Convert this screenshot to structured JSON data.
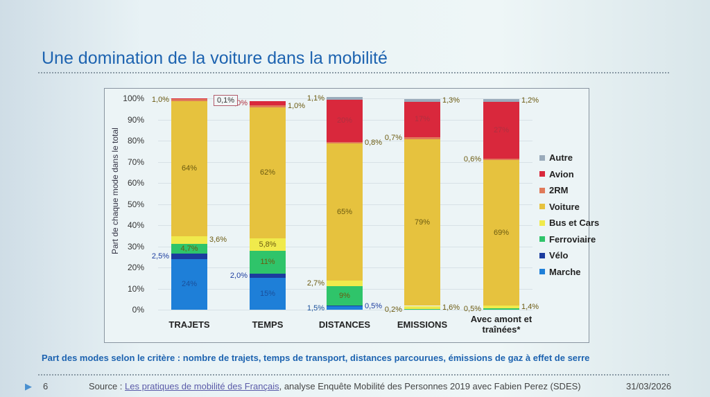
{
  "slide": {
    "title": "Une domination de la voiture dans la mobilité",
    "subtitle": "Part des modes selon le critère : nombre de trajets, temps de transport, distances parcourues, émissions de gaz à effet de serre",
    "page": "6",
    "source_label": "Source : ",
    "source_link": "Les pratiques de mobilité des Français",
    "source_rest": ", analyse Enquête Mobilité des Personnes 2019 avec Fabien Perez (SDES)",
    "date": "31/03/2026"
  },
  "chart_data": {
    "type": "bar",
    "stacked": true,
    "title": "",
    "ylabel": "Part de chaque mode dans le total",
    "ylim": [
      0,
      100
    ],
    "yticks": [
      "0%",
      "10%",
      "20%",
      "30%",
      "40%",
      "50%",
      "60%",
      "70%",
      "80%",
      "90%",
      "100%"
    ],
    "categories": [
      "TRAJETS",
      "TEMPS",
      "DISTANCES",
      "EMISSIONS",
      "Avec amont et traînées*"
    ],
    "legend_position": "right",
    "callout": "0,1%",
    "series": [
      {
        "name": "Marche",
        "color": "#1e7fd8",
        "values": [
          24,
          15,
          1.5,
          0,
          0
        ]
      },
      {
        "name": "Vélo",
        "color": "#1b3c9e",
        "values": [
          2.5,
          2.0,
          0.5,
          0,
          0
        ]
      },
      {
        "name": "Ferroviaire",
        "color": "#2fc46a",
        "values": [
          4.7,
          11,
          9,
          0.2,
          0.5
        ]
      },
      {
        "name": "Bus et Cars",
        "color": "#f0ea4c",
        "values": [
          3.6,
          5.8,
          2.7,
          1.6,
          1.4
        ]
      },
      {
        "name": "Voiture",
        "color": "#e6c23e",
        "values": [
          64,
          62,
          65,
          79,
          69
        ]
      },
      {
        "name": "2RM",
        "color": "#e07a5a",
        "values": [
          1.0,
          1.0,
          0.8,
          0.7,
          0.6
        ]
      },
      {
        "name": "Avion",
        "color": "#d9283c",
        "values": [
          0.1,
          2.0,
          20,
          17,
          27
        ]
      },
      {
        "name": "Autre",
        "color": "#9aabbb",
        "values": [
          0,
          0,
          1.1,
          1.3,
          1.2
        ]
      }
    ]
  }
}
